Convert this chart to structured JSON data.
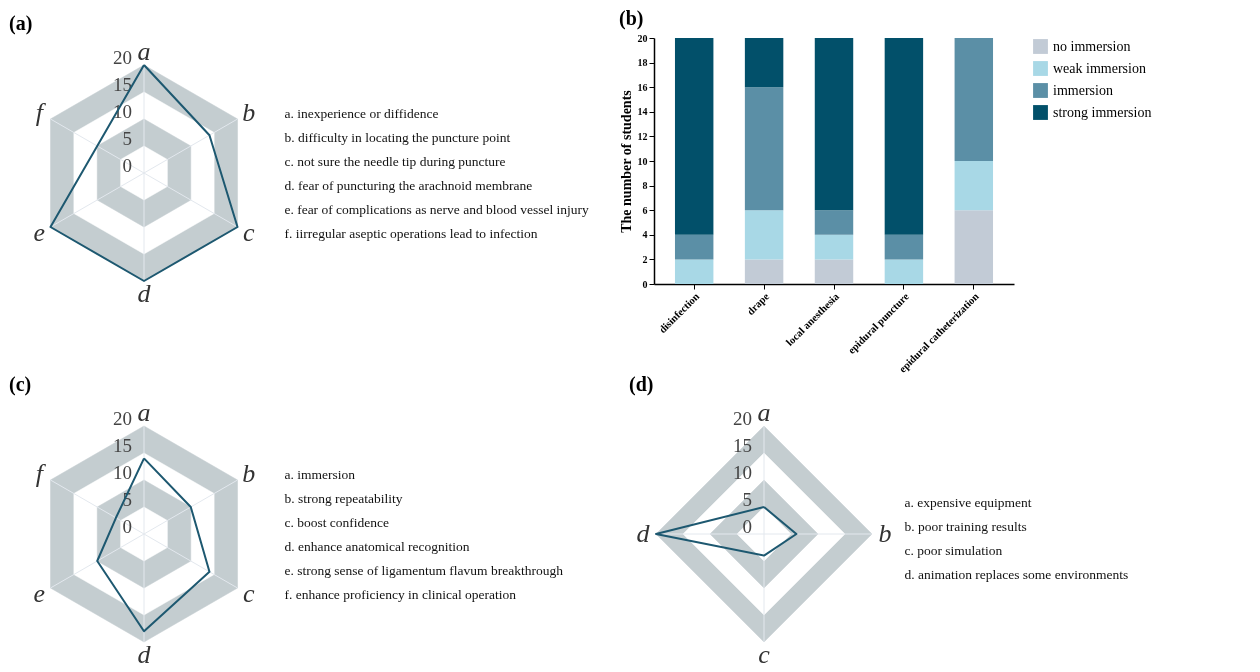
{
  "chart_data": [
    {
      "type": "radar",
      "title": "(a)",
      "categories": [
        "a",
        "b",
        "c",
        "d",
        "e",
        "f"
      ],
      "series": [
        {
          "color": "#1d5870",
          "values": [
            20,
            14,
            20,
            20,
            20,
            10
          ]
        }
      ],
      "ylim": [
        0,
        20
      ],
      "yticks": [
        0,
        5,
        10,
        15,
        20
      ],
      "grid": true,
      "annotations": [
        "a. inexperience or diffidence",
        "b. difficulty in locating the puncture point",
        "c. not sure the needle tip during puncture",
        "d. fear of puncturing the arachnoid membrane",
        "e. fear of complications as nerve and blood vessel injury",
        "f. iirregular aseptic operations lead to infection"
      ]
    },
    {
      "type": "bar",
      "title": "(b)",
      "categories": [
        "disinfection",
        "drape",
        "local anesthesia",
        "epidural puncture",
        "epidural catheterization"
      ],
      "ylabel": "The number of students",
      "stacked": true,
      "legend": "right",
      "ylim": [
        0,
        20
      ],
      "yticks": [
        0,
        2,
        4,
        6,
        8,
        10,
        12,
        14,
        16,
        18,
        20
      ],
      "series": [
        {
          "name": "no immersion",
          "color": "#c2cbd6",
          "values": [
            0,
            2,
            2,
            0,
            6
          ]
        },
        {
          "name": "weak immersion",
          "color": "#a8d8e6",
          "values": [
            2,
            4,
            2,
            2,
            4
          ]
        },
        {
          "name": "immersion",
          "color": "#5b8fa6",
          "values": [
            2,
            10,
            2,
            2,
            10
          ]
        },
        {
          "name": "strong immersion",
          "color": "#02506a",
          "values": [
            16,
            4,
            14,
            16,
            0
          ]
        }
      ]
    },
    {
      "type": "radar",
      "title": "(c)",
      "categories": [
        "a",
        "b",
        "c",
        "d",
        "e",
        "f"
      ],
      "series": [
        {
          "color": "#1d5870",
          "values": [
            14,
            10,
            14,
            18,
            10,
            6
          ]
        }
      ],
      "ylim": [
        0,
        20
      ],
      "yticks": [
        0,
        5,
        10,
        15,
        20
      ],
      "grid": true,
      "annotations": [
        "a. immersion",
        "b. strong repeatability",
        "c. boost confidence",
        "d. enhance anatomical recognition",
        "e. strong sense of ligamentum flavum  breakthrough",
        "f. enhance proficiency in clinical operation"
      ]
    },
    {
      "type": "radar",
      "title": "(d)",
      "categories": [
        "a",
        "b",
        "c",
        "d"
      ],
      "series": [
        {
          "color": "#1d5870",
          "values": [
            5,
            6,
            4,
            20
          ]
        }
      ],
      "ylim": [
        0,
        20
      ],
      "yticks": [
        0,
        5,
        10,
        15,
        20
      ],
      "grid": true,
      "annotations": [
        "a. expensive equipment",
        "b. poor training results",
        "c. poor simulation",
        "d. animation replaces some environments"
      ]
    }
  ]
}
